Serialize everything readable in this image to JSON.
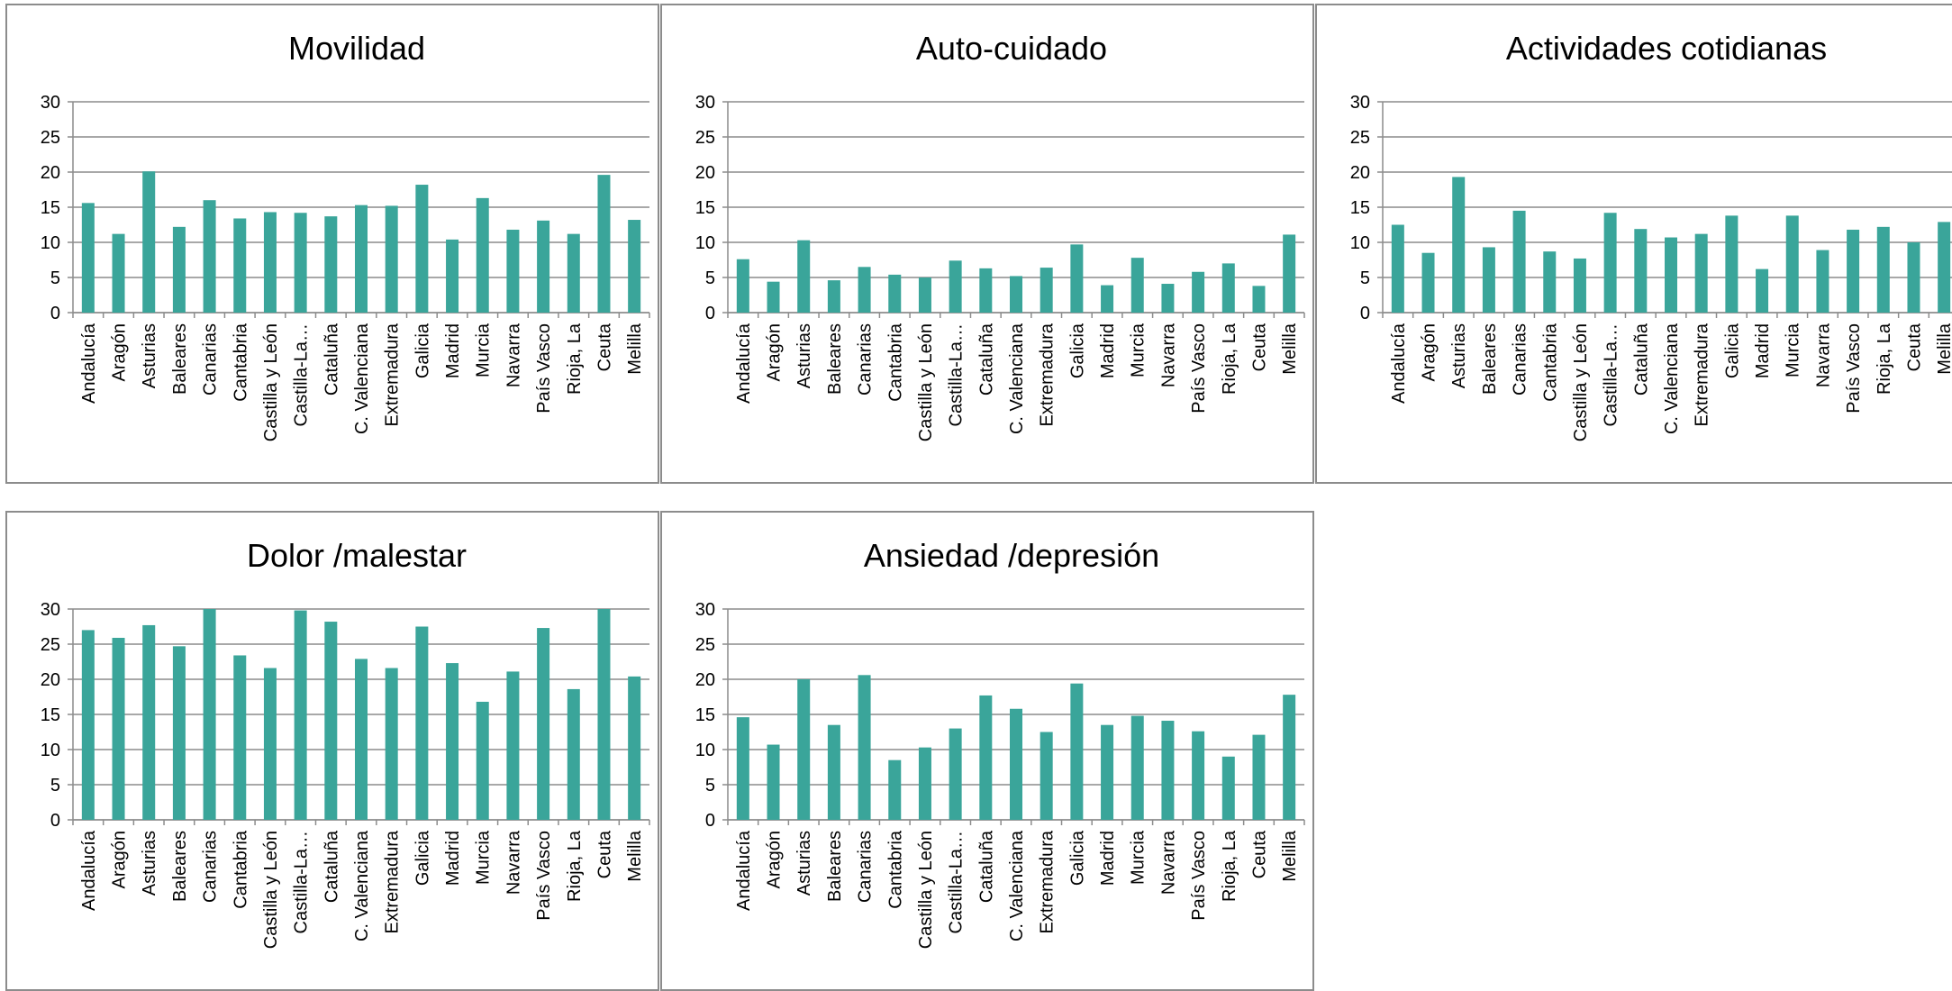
{
  "colors": {
    "bar": "#3aa59a",
    "grid": "#8c8c8c",
    "axis": "#8c8c8c",
    "border": "#8c8c8c"
  },
  "categories": [
    "Andalucía",
    "Aragón",
    "Asturias",
    "Baleares",
    "Canarias",
    "Cantabria",
    "Castilla y León",
    "Castilla-La…",
    "Cataluña",
    "C. Valenciana",
    "Extremadura",
    "Galicia",
    "Madrid",
    "Murcia",
    "Navarra",
    "País Vasco",
    "Rioja, La",
    "Ceuta",
    "Melilla"
  ],
  "chart_data": [
    {
      "type": "bar",
      "title": "Movilidad",
      "xlabel": "",
      "ylabel": "",
      "ylim": [
        0,
        30
      ],
      "yticks": [
        0,
        5,
        10,
        15,
        20,
        25,
        30
      ],
      "grid": true,
      "values": [
        15.6,
        11.2,
        20.1,
        12.2,
        16.0,
        13.4,
        14.3,
        14.2,
        13.7,
        15.3,
        15.2,
        18.2,
        10.4,
        16.3,
        11.8,
        13.1,
        11.2,
        19.6,
        13.2
      ]
    },
    {
      "type": "bar",
      "title": "Auto-cuidado",
      "xlabel": "",
      "ylabel": "",
      "ylim": [
        0,
        30
      ],
      "yticks": [
        0,
        5,
        10,
        15,
        20,
        25,
        30
      ],
      "grid": true,
      "values": [
        7.6,
        4.4,
        10.3,
        4.6,
        6.5,
        5.4,
        5.0,
        7.4,
        6.3,
        5.2,
        6.4,
        9.7,
        3.9,
        7.8,
        4.1,
        5.8,
        7.0,
        3.8,
        11.1
      ]
    },
    {
      "type": "bar",
      "title": "Actividades cotidianas",
      "xlabel": "",
      "ylabel": "",
      "ylim": [
        0,
        30
      ],
      "yticks": [
        0,
        5,
        10,
        15,
        20,
        25,
        30
      ],
      "grid": true,
      "values": [
        12.5,
        8.5,
        19.3,
        9.3,
        14.5,
        8.7,
        7.7,
        14.2,
        11.9,
        10.7,
        11.2,
        13.8,
        6.2,
        13.8,
        8.9,
        11.8,
        12.2,
        10.0,
        12.9
      ]
    },
    {
      "type": "bar",
      "title": "Dolor /malestar",
      "xlabel": "",
      "ylabel": "",
      "ylim": [
        0,
        30
      ],
      "yticks": [
        0,
        5,
        10,
        15,
        20,
        25,
        30
      ],
      "grid": true,
      "values": [
        27.0,
        25.9,
        27.7,
        24.7,
        30.0,
        23.4,
        21.6,
        29.8,
        28.2,
        22.9,
        21.6,
        27.5,
        22.3,
        16.8,
        21.1,
        27.3,
        18.6,
        30.0,
        20.4
      ]
    },
    {
      "type": "bar",
      "title": "Ansiedad /depresión",
      "xlabel": "",
      "ylabel": "",
      "ylim": [
        0,
        30
      ],
      "yticks": [
        0,
        5,
        10,
        15,
        20,
        25,
        30
      ],
      "grid": true,
      "values": [
        14.6,
        10.7,
        20.0,
        13.5,
        20.6,
        8.5,
        10.3,
        13.0,
        17.7,
        15.8,
        12.5,
        19.4,
        13.5,
        14.8,
        14.1,
        12.6,
        9.0,
        12.1,
        17.8
      ]
    }
  ]
}
